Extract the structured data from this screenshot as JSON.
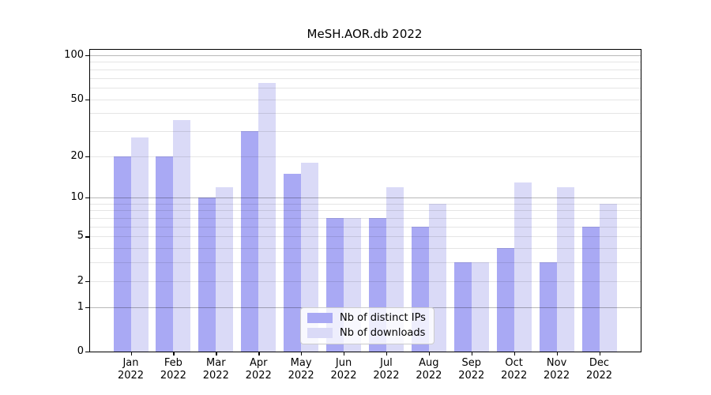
{
  "title": "MeSH.AOR.db 2022",
  "chart_data": {
    "type": "bar",
    "title": "MeSH.AOR.db 2022",
    "categories": [
      "Jan",
      "Feb",
      "Mar",
      "Apr",
      "May",
      "Jun",
      "Jul",
      "Aug",
      "Sep",
      "Oct",
      "Nov",
      "Dec"
    ],
    "category_year": "2022",
    "series": [
      {
        "name": "Nb of distinct IPs",
        "color": "#a9a9f4",
        "values": [
          20,
          20,
          10,
          30,
          15,
          7,
          7,
          6,
          3,
          4,
          3,
          6
        ]
      },
      {
        "name": "Nb of downloads",
        "color": "#dadaf7",
        "values": [
          27,
          36,
          12,
          65,
          18,
          7,
          12,
          9,
          3,
          13,
          12,
          9
        ]
      }
    ],
    "xlabel": "",
    "ylabel": "",
    "yscale": "log1p",
    "ylim": [
      0,
      110
    ],
    "y_tick_values": [
      0,
      1,
      2,
      5,
      10,
      20,
      50,
      100
    ],
    "y_major_gridlines": [
      1,
      10,
      100
    ],
    "y_minor_gridlines": [
      2,
      3,
      4,
      5,
      6,
      7,
      8,
      9,
      20,
      30,
      40,
      50,
      60,
      70,
      80,
      90
    ],
    "grid": "on",
    "grid_over_bars": true,
    "legend_position": "inside-bottom-center",
    "colors": {
      "bar_distinct_ips": "#a9a9f4",
      "bar_downloads": "#dadaf7",
      "major_grid": "rgba(0,0,0,0.28)",
      "minor_grid": "rgba(0,0,0,0.10)",
      "axis": "#000000",
      "background": "#ffffff"
    }
  }
}
